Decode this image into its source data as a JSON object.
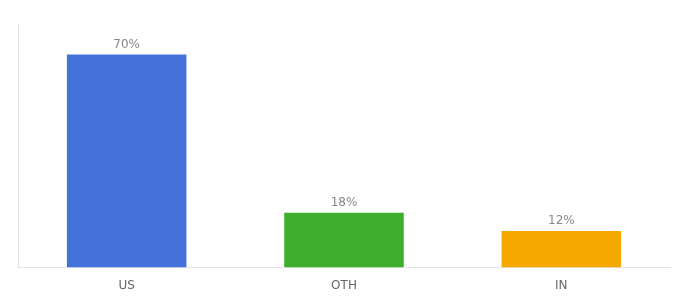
{
  "chart_data": {
    "type": "bar",
    "categories": [
      "US",
      "OTH",
      "IN"
    ],
    "values": [
      70,
      18,
      12
    ],
    "value_labels": [
      "70%",
      "18%",
      "12%"
    ],
    "colors": [
      "#4472db",
      "#3daf2c",
      "#f5a800"
    ],
    "ylim": [
      0,
      80
    ],
    "grid": false,
    "tick_labels": "x"
  }
}
